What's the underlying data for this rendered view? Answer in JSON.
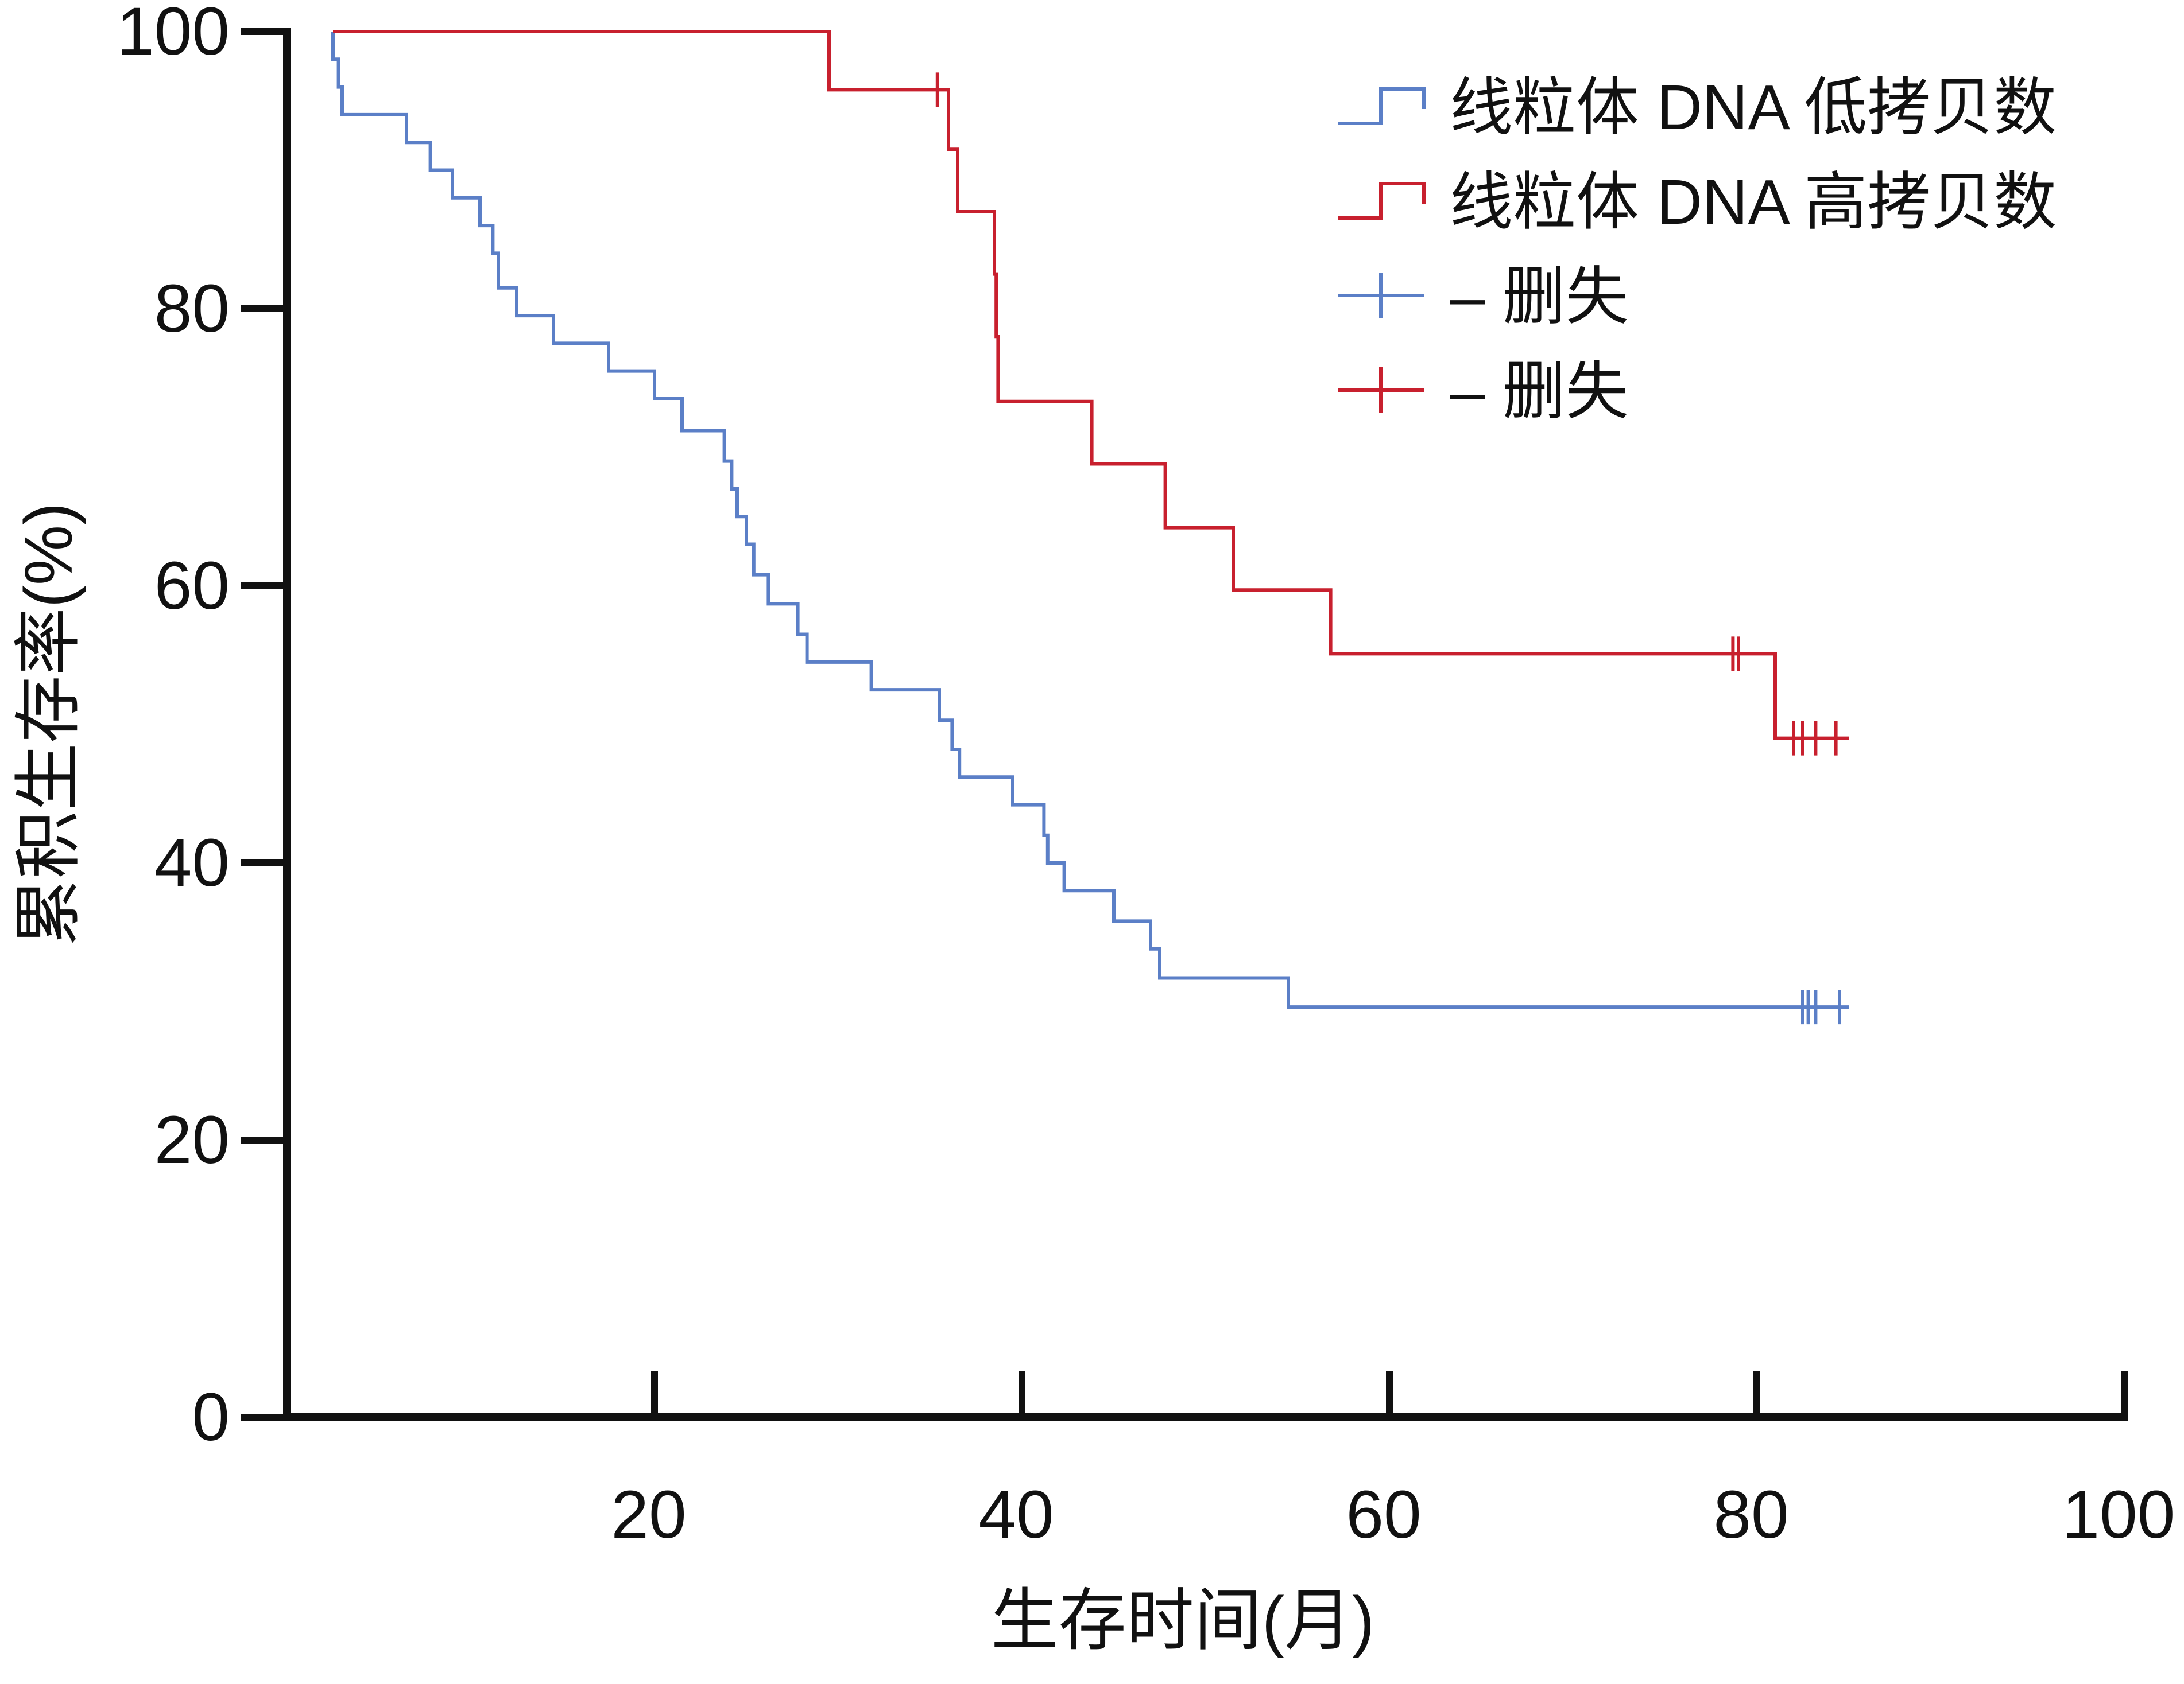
{
  "chart_data": {
    "type": "line",
    "subtype": "kaplan-meier",
    "xlabel": "生存时间(月)",
    "ylabel": "累积生存率(%)",
    "xlim": [
      0,
      100
    ],
    "ylim": [
      0,
      100
    ],
    "x_ticks": [
      "20",
      "40",
      "60",
      "80",
      "100"
    ],
    "y_ticks": [
      "0",
      "20",
      "40",
      "60",
      "80",
      "100"
    ],
    "grid": false,
    "legend_position": "top-right",
    "legend": [
      {
        "label": "线粒体 DNA 低拷贝数",
        "marker": "step-line",
        "color": "#5b7fc7"
      },
      {
        "label": "线粒体 DNA 高拷贝数",
        "marker": "step-line",
        "color": "#c8202e"
      },
      {
        "label": "– 删失",
        "marker": "plus",
        "color": "#5b7fc7"
      },
      {
        "label": "– 删失",
        "marker": "plus",
        "color": "#c8202e"
      }
    ],
    "series": [
      {
        "color": "#5b7fc7",
        "steps": [
          [
            2.5,
            100
          ],
          [
            2.5,
            98
          ],
          [
            2.8,
            96
          ],
          [
            3.0,
            94
          ],
          [
            6.5,
            92
          ],
          [
            7.8,
            90
          ],
          [
            9.0,
            88
          ],
          [
            10.5,
            86
          ],
          [
            11.2,
            84
          ],
          [
            11.5,
            81.5
          ],
          [
            12.5,
            79.5
          ],
          [
            14.5,
            77.5
          ],
          [
            17.5,
            75.5
          ],
          [
            20.0,
            73.5
          ],
          [
            21.5,
            71.2
          ],
          [
            23.8,
            69
          ],
          [
            24.2,
            67
          ],
          [
            24.5,
            65
          ],
          [
            25.0,
            63
          ],
          [
            25.4,
            60.8
          ],
          [
            26.2,
            58.7
          ],
          [
            27.8,
            56.5
          ],
          [
            28.3,
            54.5
          ],
          [
            31.8,
            52.5
          ],
          [
            35.5,
            50.3
          ],
          [
            36.2,
            48.2
          ],
          [
            36.6,
            46.2
          ],
          [
            39.5,
            44.2
          ],
          [
            41.2,
            42
          ],
          [
            41.4,
            40
          ],
          [
            42.3,
            38
          ],
          [
            45.0,
            35.8
          ],
          [
            47.0,
            33.8
          ],
          [
            47.5,
            31.7
          ],
          [
            54.5,
            29.6
          ]
        ],
        "end_x": 85,
        "censored": [
          82.5,
          82.8,
          83.2,
          84.5
        ]
      },
      {
        "color": "#c8202e",
        "steps": [
          [
            2.5,
            100
          ],
          [
            29.5,
            95.8
          ],
          [
            36.0,
            91.5
          ],
          [
            36.5,
            87
          ],
          [
            38.5,
            82.5
          ],
          [
            38.6,
            78
          ],
          [
            38.7,
            73.3
          ],
          [
            43.8,
            68.8
          ],
          [
            47.8,
            64.2
          ],
          [
            51.5,
            59.7
          ],
          [
            56.8,
            55.1
          ],
          [
            81.0,
            49
          ]
        ],
        "end_x": 85,
        "censored": [
          35.4,
          78.7,
          79.0,
          82.0,
          82.5,
          83.2,
          84.3
        ]
      }
    ]
  }
}
